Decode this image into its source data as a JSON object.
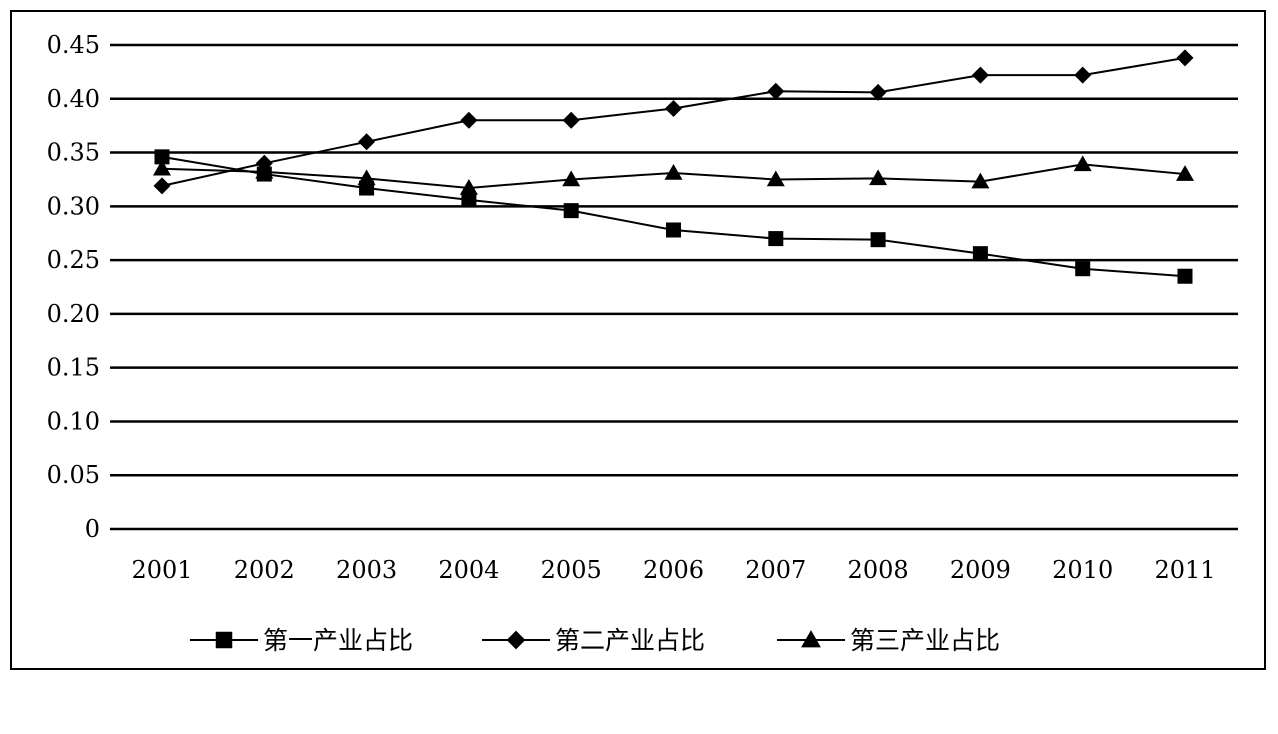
{
  "chart_data": {
    "type": "line",
    "title": "",
    "xlabel": "",
    "ylabel": "",
    "categories": [
      "2001",
      "2002",
      "2003",
      "2004",
      "2005",
      "2006",
      "2007",
      "2008",
      "2009",
      "2010",
      "2011"
    ],
    "y_ticks": [
      "0",
      "0.05",
      "0.10",
      "0.15",
      "0.20",
      "0.25",
      "0.30",
      "0.35",
      "0.40",
      "0.45"
    ],
    "ylim": [
      0,
      0.45
    ],
    "grid": true,
    "legend_position": "bottom",
    "series": [
      {
        "name": "第一产业占比",
        "marker": "square",
        "values": [
          0.346,
          0.33,
          0.317,
          0.306,
          0.296,
          0.278,
          0.27,
          0.269,
          0.256,
          0.242,
          0.235
        ]
      },
      {
        "name": "第二产业占比",
        "marker": "diamond",
        "values": [
          0.319,
          0.34,
          0.36,
          0.38,
          0.38,
          0.391,
          0.407,
          0.406,
          0.422,
          0.422,
          0.438
        ]
      },
      {
        "name": "第三产业占比",
        "marker": "triangle",
        "values": [
          0.335,
          0.332,
          0.326,
          0.317,
          0.325,
          0.331,
          0.325,
          0.326,
          0.323,
          0.339,
          0.33
        ]
      }
    ],
    "colors": {
      "line": "#000000",
      "grid": "#000000",
      "background": "#ffffff"
    }
  }
}
